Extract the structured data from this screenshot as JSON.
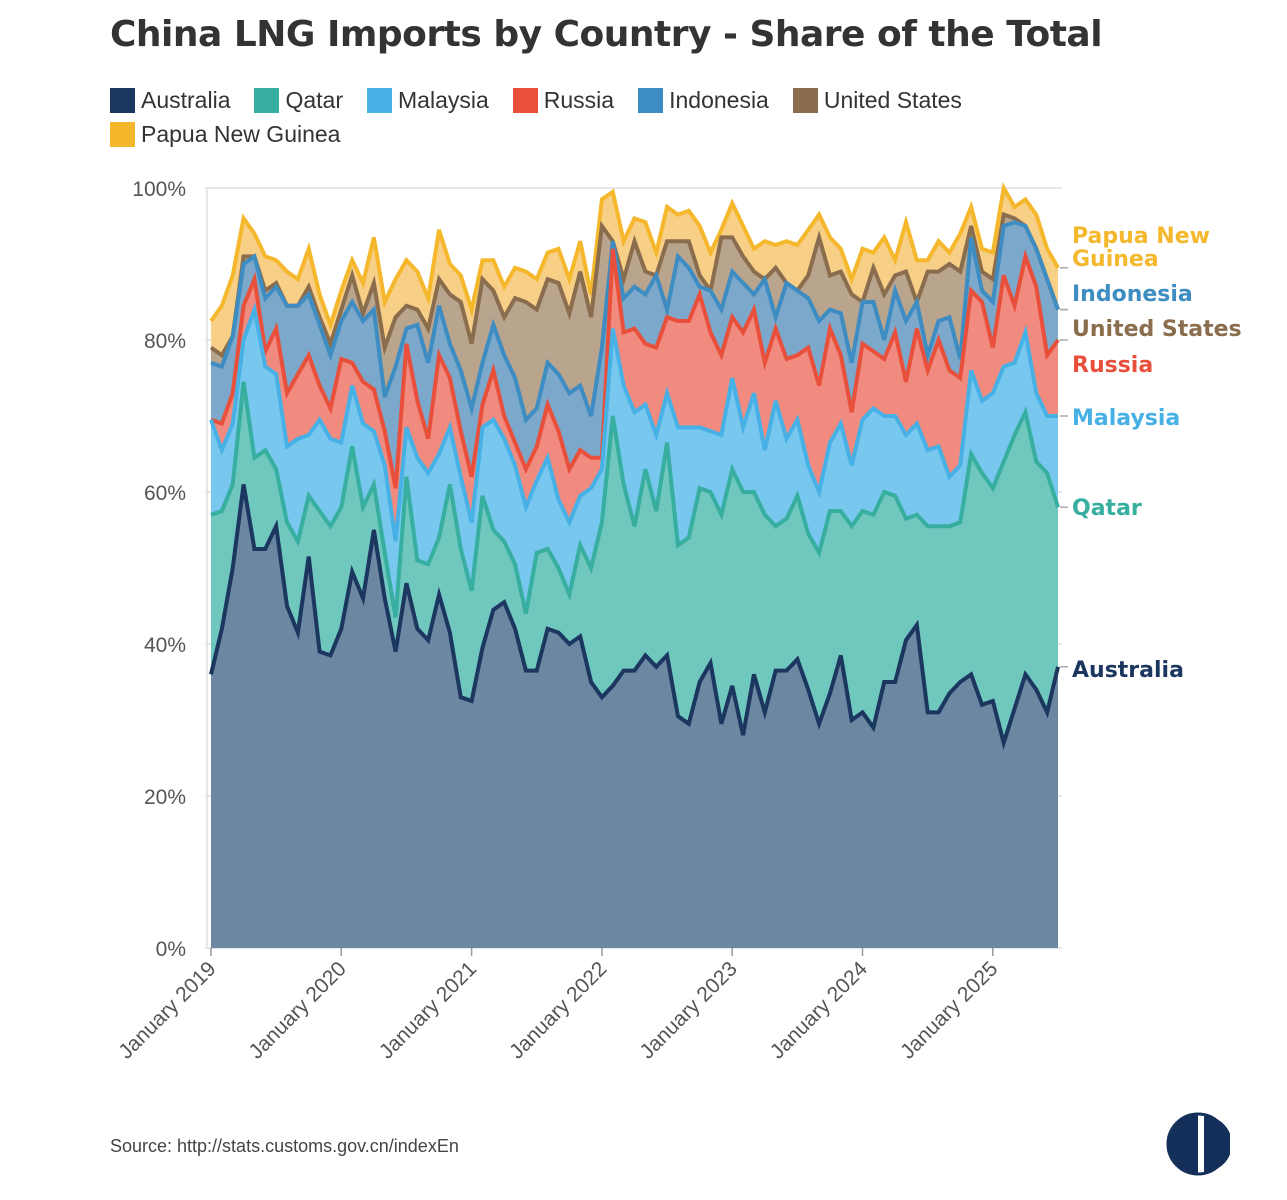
{
  "chart_data": {
    "type": "area",
    "stacked": true,
    "title": "China LNG Imports by Country - Share of the Total",
    "source": "Source: http://stats.customs.gov.cn/indexEn",
    "ylim": [
      0,
      100
    ],
    "yticks": [
      "0%",
      "20%",
      "40%",
      "60%",
      "80%",
      "100%"
    ],
    "xticks": [
      "January 2019",
      "January 2020",
      "January 2021",
      "January 2022",
      "January 2023",
      "January 2024",
      "January 2025"
    ],
    "grid": true,
    "legend_position": "top-left",
    "x": [
      "2019-01",
      "2019-02",
      "2019-03",
      "2019-04",
      "2019-05",
      "2019-06",
      "2019-07",
      "2019-08",
      "2019-09",
      "2019-10",
      "2019-11",
      "2019-12",
      "2020-01",
      "2020-02",
      "2020-03",
      "2020-04",
      "2020-05",
      "2020-06",
      "2020-07",
      "2020-08",
      "2020-09",
      "2020-10",
      "2020-11",
      "2020-12",
      "2021-01",
      "2021-02",
      "2021-03",
      "2021-04",
      "2021-05",
      "2021-06",
      "2021-07",
      "2021-08",
      "2021-09",
      "2021-10",
      "2021-11",
      "2021-12",
      "2022-01",
      "2022-02",
      "2022-03",
      "2022-04",
      "2022-05",
      "2022-06",
      "2022-07",
      "2022-08",
      "2022-09",
      "2022-10",
      "2022-11",
      "2022-12",
      "2023-01",
      "2023-02",
      "2023-03",
      "2023-04",
      "2023-05",
      "2023-06",
      "2023-07",
      "2023-08",
      "2023-09",
      "2023-10",
      "2023-11",
      "2023-12",
      "2024-01",
      "2024-02",
      "2024-03",
      "2024-04",
      "2024-05",
      "2024-06",
      "2024-07",
      "2024-08",
      "2024-09",
      "2024-10",
      "2024-11",
      "2024-12",
      "2025-01",
      "2025-02",
      "2025-03",
      "2025-04",
      "2025-05",
      "2025-06",
      "2025-07"
    ],
    "series": [
      {
        "name": "Australia",
        "line": "#1b365f",
        "fill": "#6b87a1",
        "label": "Australia",
        "values": [
          36,
          42,
          50,
          61,
          52.5,
          52.5,
          55.5,
          45,
          41.5,
          51.5,
          39,
          38.5,
          42,
          49.5,
          46,
          55,
          46,
          39,
          48,
          42,
          40.5,
          46.5,
          41.5,
          33,
          32.5,
          39.5,
          44.5,
          45.5,
          42,
          36.5,
          36.5,
          42,
          41.5,
          40,
          41,
          35,
          33,
          34.5,
          36.5,
          36.5,
          38.5,
          37,
          38.5,
          30.5,
          29.5,
          35,
          37.5,
          29.5,
          34.5,
          28,
          36,
          31,
          36.5,
          36.5,
          38,
          34,
          29.5,
          33.5,
          38.5,
          30,
          31,
          29,
          35,
          35,
          40.5,
          42.5,
          31,
          31,
          33.5,
          35,
          36,
          32,
          32.5,
          27,
          31.5,
          36,
          34,
          31,
          37
        ]
      },
      {
        "name": "Qatar",
        "line": "#37ae9f",
        "fill": "#70c7be",
        "label": "Qatar",
        "values": [
          21,
          15.5,
          11,
          13.5,
          12,
          13,
          7.5,
          11,
          12,
          8,
          18.5,
          17,
          16,
          16.5,
          12,
          6,
          6,
          4.5,
          14,
          9,
          10,
          7.5,
          19.5,
          19.5,
          14.5,
          20,
          10.5,
          8,
          8.5,
          7.5,
          15.5,
          10.5,
          8.5,
          6.5,
          12,
          15,
          23,
          35.5,
          24.5,
          19,
          24.5,
          20.5,
          28,
          22.5,
          24.5,
          25.5,
          22.5,
          27.5,
          28.5,
          32,
          24,
          26,
          19,
          20,
          21.5,
          20.5,
          22.5,
          24,
          19,
          25.5,
          26.5,
          28,
          25,
          24.5,
          16,
          14.5,
          24.5,
          24.5,
          22,
          21,
          29,
          30.5,
          28,
          37,
          36,
          34.5,
          30,
          31.5,
          21
        ]
      },
      {
        "name": "Malaysia",
        "line": "#47b1e6",
        "fill": "#78c7ef",
        "label": "Malaysia",
        "values": [
          12.5,
          8,
          8,
          5.5,
          19.5,
          11,
          12.5,
          10,
          13.5,
          8,
          12,
          11.5,
          8.5,
          8,
          11,
          7,
          11.5,
          10,
          6.5,
          13.5,
          12,
          11,
          7.5,
          9.5,
          9,
          9,
          14.5,
          13.5,
          13,
          14,
          9.5,
          12,
          9,
          9.5,
          6.5,
          10.5,
          7,
          11.5,
          13,
          15,
          8.5,
          10,
          6.5,
          15.5,
          14.5,
          8,
          8,
          10.5,
          12,
          8.5,
          13,
          8.5,
          16.5,
          10.5,
          10,
          9,
          8,
          9,
          11.5,
          8,
          12,
          14,
          10,
          10.5,
          11,
          12,
          10,
          10.5,
          6.5,
          7.5,
          11,
          9.5,
          12.5,
          12.5,
          9.5,
          10.5,
          9,
          7.5,
          12
        ]
      },
      {
        "name": "Russia",
        "line": "#e8503c",
        "fill": "#f18b80",
        "label": "Russia",
        "values": [
          0,
          3.5,
          4,
          4.5,
          4,
          2,
          6,
          7,
          8.5,
          10.5,
          4.5,
          4,
          11,
          3,
          5.5,
          5.5,
          4.5,
          7,
          11,
          7.5,
          4.5,
          13,
          6.5,
          6,
          6,
          3,
          6.5,
          3,
          3,
          5,
          4.5,
          7,
          9,
          7,
          6,
          4,
          1.5,
          10.5,
          7,
          11,
          8,
          11.5,
          10,
          14,
          14,
          17.5,
          13,
          10.5,
          8,
          12.5,
          11,
          11.5,
          9.5,
          10.5,
          8.5,
          15.5,
          14,
          15,
          9,
          7,
          10,
          7.5,
          7.5,
          11,
          7,
          12.5,
          10.5,
          14,
          14,
          11.5,
          10.5,
          13,
          6,
          12,
          7.5,
          10,
          14,
          8,
          10
        ]
      },
      {
        "name": "Indonesia",
        "line": "#3d8cc2",
        "fill": "#7ba8cb",
        "label": "Indonesia",
        "values": [
          7.5,
          7.5,
          7.5,
          5.5,
          3,
          7,
          5.5,
          11.5,
          9,
          8,
          8,
          7,
          5,
          8,
          8,
          10.5,
          4.5,
          16,
          2,
          10,
          10,
          6.5,
          4.5,
          8,
          9,
          5.5,
          6,
          8,
          8.5,
          6.5,
          5,
          5.5,
          7.5,
          10,
          8.5,
          5.5,
          14.5,
          1,
          4.5,
          5.5,
          6.5,
          9.5,
          1,
          8.5,
          7,
          1,
          5.5,
          6,
          6,
          6.5,
          2,
          11,
          1.5,
          10,
          8.5,
          6.5,
          8.5,
          2.5,
          5.5,
          6.5,
          5.5,
          6.5,
          2.5,
          5.5,
          8,
          3.5,
          2,
          2.5,
          7,
          2.5,
          7,
          1.5,
          6,
          6.5,
          11,
          4,
          5,
          10,
          4
        ]
      },
      {
        "name": "United States",
        "line": "#8a6d4d",
        "fill": "#b9a48e",
        "label": "United States",
        "values": [
          2,
          1.5,
          0,
          1,
          0,
          1,
          0.5,
          0,
          0,
          1,
          1,
          1.5,
          1.5,
          3.5,
          1,
          3.5,
          6.5,
          6.5,
          3,
          2,
          4.5,
          3.5,
          6.5,
          9,
          8.5,
          11,
          4.5,
          5,
          10.5,
          15.5,
          13,
          11,
          12,
          10.5,
          15,
          13,
          16,
          0,
          2.5,
          6,
          3,
          0,
          9,
          2,
          3.5,
          1.5,
          0,
          9.5,
          4.5,
          3.5,
          3,
          0,
          6.5,
          0,
          0,
          3,
          11,
          4.5,
          5.5,
          9,
          0,
          4.5,
          6,
          2,
          6.5,
          0,
          11,
          6.5,
          7,
          11.5,
          1.5,
          2.5,
          3,
          1.5,
          0.5,
          0,
          0,
          0,
          0
        ]
      },
      {
        "name": "Papua New Guinea",
        "line": "#f5b72c",
        "fill": "#f8cf86",
        "label": "Papua New Guinea",
        "values": [
          3.5,
          6.5,
          8,
          5,
          3,
          4.5,
          3,
          4.5,
          3.5,
          5,
          3,
          2.5,
          2.5,
          2,
          4,
          6,
          6,
          5,
          6,
          5,
          4,
          6.5,
          4,
          3.5,
          4.5,
          2.5,
          4,
          4,
          4,
          4,
          4,
          3.5,
          4.5,
          4.5,
          4,
          3,
          3.5,
          6.5,
          5,
          3,
          6.5,
          3,
          4.5,
          3.5,
          4,
          6.5,
          5,
          1,
          4.5,
          4,
          3,
          5,
          3,
          5.5,
          6,
          6,
          3,
          5,
          3,
          2,
          7,
          2,
          7.5,
          2,
          6.5,
          5.5,
          1.5,
          4,
          1.5,
          5,
          2.5,
          3,
          3.5,
          3.5,
          1.5,
          3.5,
          4.5,
          4,
          5.5
        ]
      }
    ]
  },
  "logo": "Center for Strategic and International Studies style half-circle logo"
}
